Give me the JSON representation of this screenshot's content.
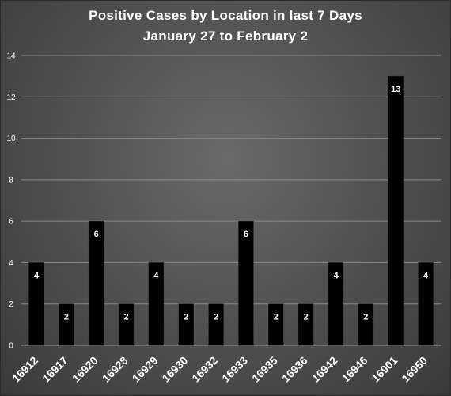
{
  "chart_data": {
    "type": "bar",
    "title": "Positive Cases by Location in last 7 Days",
    "subtitle": "January 27 to February 2",
    "categories": [
      "16912",
      "16917",
      "16920",
      "16928",
      "16929",
      "16930",
      "16932",
      "16933",
      "16935",
      "16936",
      "16942",
      "16946",
      "16901",
      "16950"
    ],
    "values": [
      4,
      2,
      6,
      2,
      4,
      2,
      2,
      6,
      2,
      2,
      4,
      2,
      13,
      4
    ],
    "xlabel": "",
    "ylabel": "",
    "ylim": [
      0,
      14
    ],
    "yticks": [
      0,
      2,
      4,
      6,
      8,
      10,
      12,
      14
    ],
    "grid": true,
    "legend": "none",
    "bar_color": "#000000",
    "label_color": "#ffffff",
    "gridline_color": "#8a8a8a"
  }
}
